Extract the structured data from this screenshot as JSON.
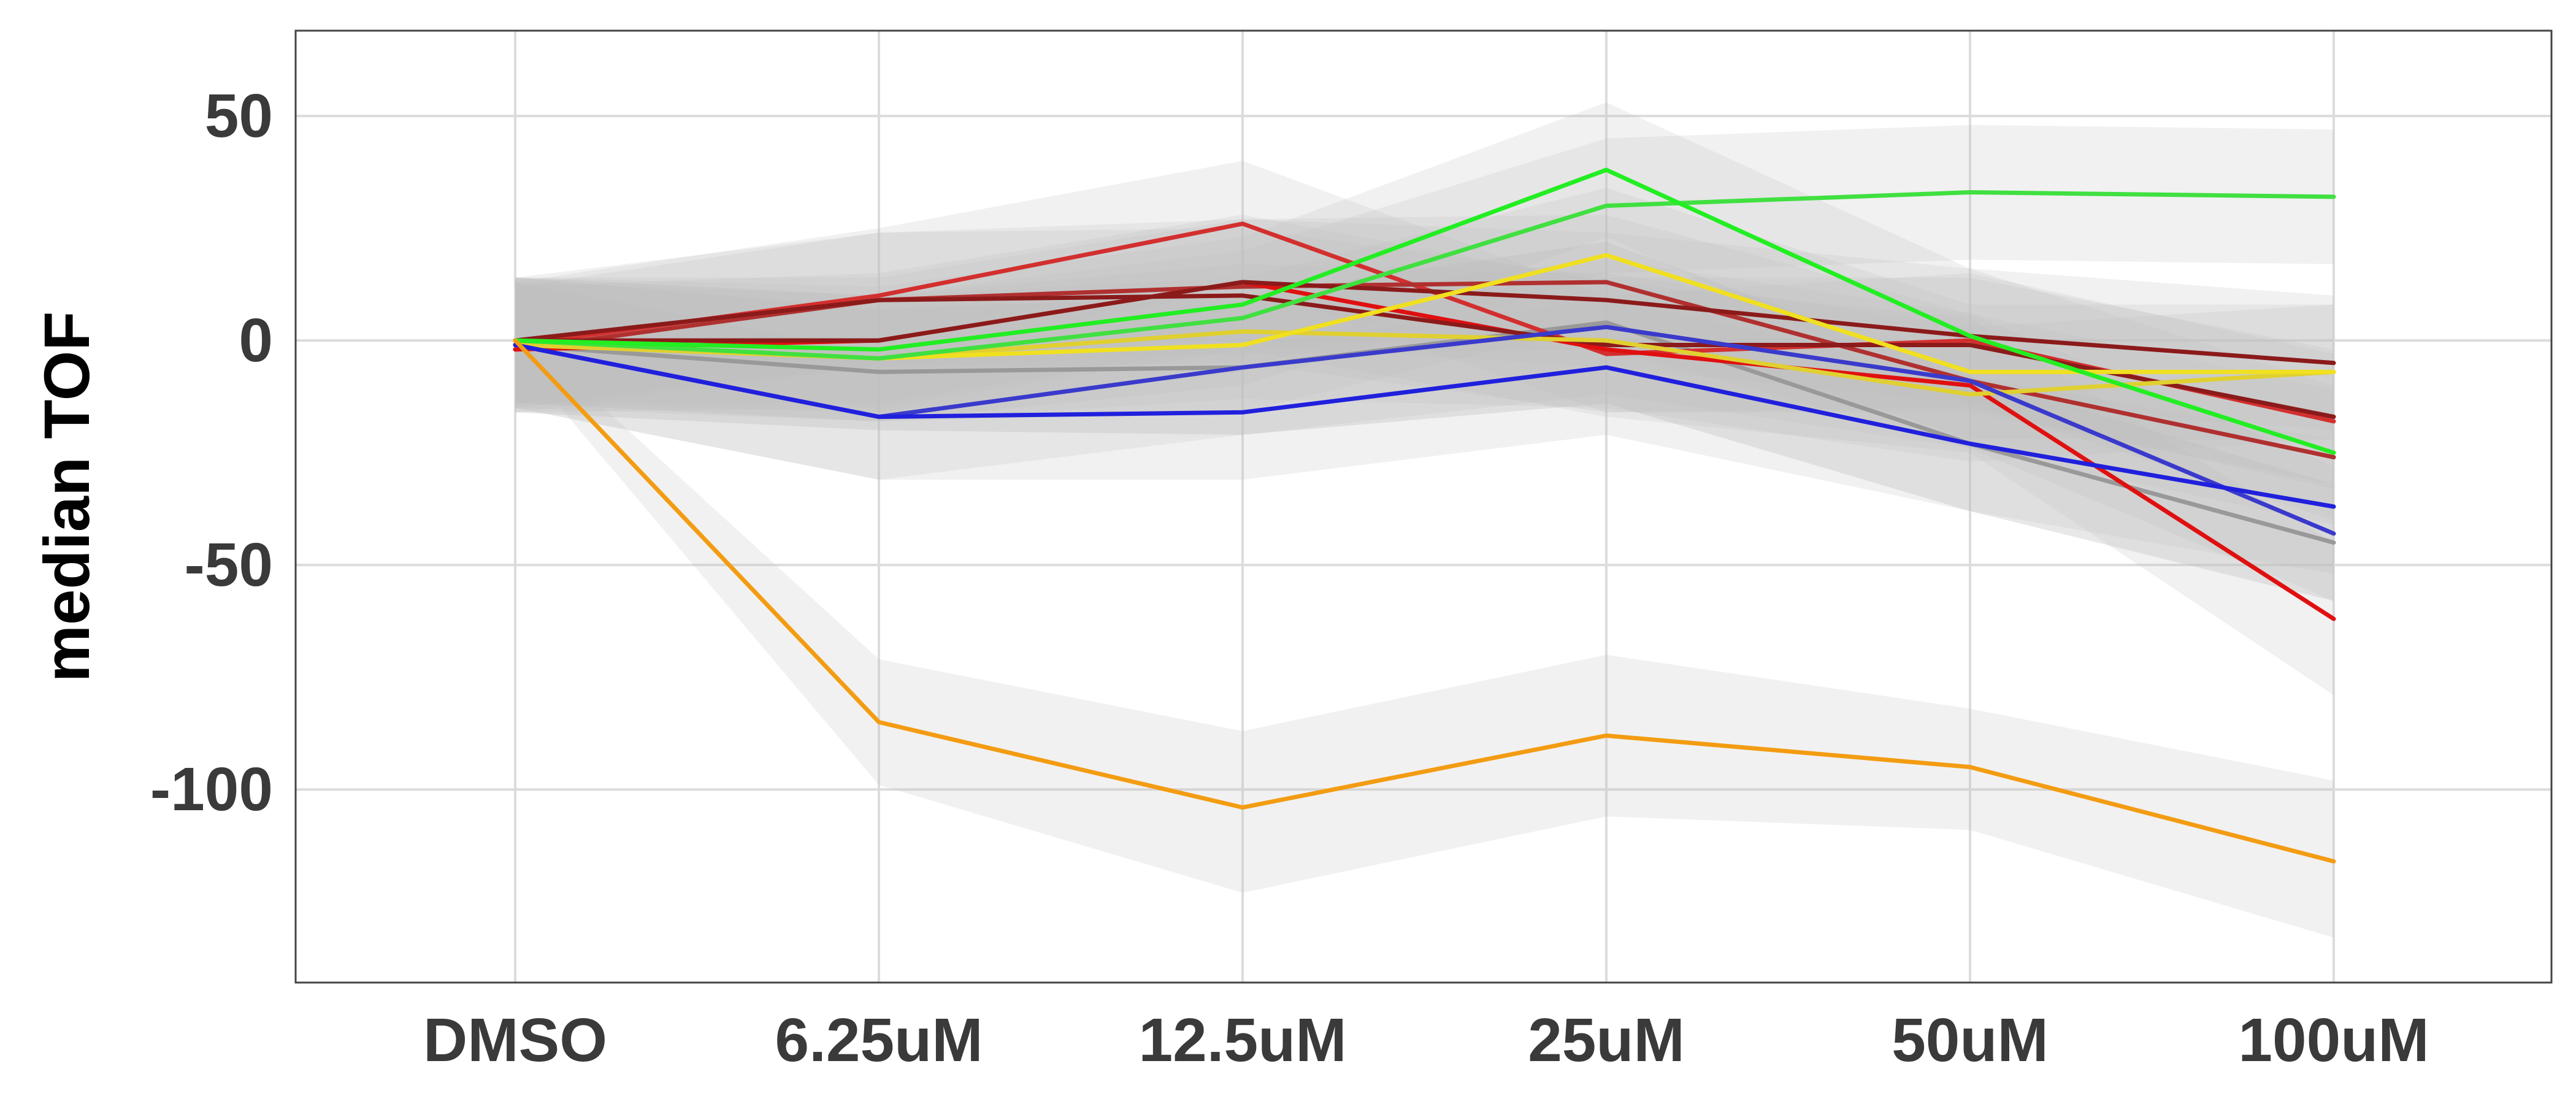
{
  "chart_data": {
    "type": "line",
    "title": "",
    "xlabel": "",
    "ylabel": "median TOF",
    "categories": [
      "DMSO",
      "6.25uM",
      "12.5uM",
      "25uM",
      "50uM",
      "100uM"
    ],
    "ylim": [
      -143,
      69
    ],
    "yticks": [
      50,
      0,
      -50,
      -100
    ],
    "ytick_labels": [
      "50",
      "0",
      "-50",
      "-100"
    ],
    "grid": true,
    "legend": "none",
    "ribbon_color": "#bdbdbd",
    "series": [
      {
        "color": "#999999",
        "values": [
          -1,
          -7,
          -6,
          4,
          -23,
          -45
        ],
        "lower": [
          -16,
          -20,
          -21,
          -14,
          -38,
          -58
        ],
        "upper": [
          14,
          7,
          10,
          22,
          -8,
          -32
        ],
        "ribbon_alpha": 0.35
      },
      {
        "color": "#d32f2f",
        "values": [
          -1,
          10,
          26,
          -3,
          0,
          -18
        ],
        "lower": [
          -15,
          -5,
          12,
          -16,
          -15,
          -33
        ],
        "upper": [
          13,
          25,
          40,
          10,
          15,
          -3
        ],
        "ribbon_alpha": 0.22
      },
      {
        "color": "#b03030",
        "values": [
          -2,
          9,
          12,
          13,
          -9,
          -26
        ],
        "lower": [
          -16,
          -6,
          -3,
          -2,
          -24,
          -41
        ],
        "upper": [
          12,
          24,
          27,
          28,
          6,
          -11
        ],
        "ribbon_alpha": 0.22
      },
      {
        "color": "#e01010",
        "values": [
          -2,
          0,
          13,
          -2,
          -10,
          -62
        ],
        "lower": [
          -16,
          -15,
          -2,
          -17,
          -25,
          -79
        ],
        "upper": [
          12,
          15,
          28,
          13,
          5,
          -45
        ],
        "ribbon_alpha": 0.22
      },
      {
        "color": "#8b1a1a",
        "values": [
          0,
          0,
          13,
          9,
          1,
          -5
        ],
        "lower": [
          -14,
          -14,
          -1,
          -6,
          -14,
          -20
        ],
        "upper": [
          14,
          14,
          27,
          24,
          16,
          10
        ],
        "ribbon_alpha": 0.22
      },
      {
        "color": "#8b1a1a",
        "values": [
          0,
          9,
          10,
          -1,
          -1,
          -17
        ],
        "lower": [
          -14,
          -6,
          -5,
          -16,
          -16,
          -32
        ],
        "upper": [
          14,
          24,
          25,
          14,
          14,
          -2
        ],
        "ribbon_alpha": 0.22
      },
      {
        "color": "#e0d030",
        "values": [
          -1,
          -4,
          2,
          0,
          -12,
          -7
        ],
        "lower": [
          -15,
          -18,
          -13,
          -15,
          -27,
          -22
        ],
        "upper": [
          13,
          10,
          17,
          15,
          3,
          8
        ],
        "ribbon_alpha": 0.22
      },
      {
        "color": "#f0e020",
        "values": [
          0,
          -4,
          -1,
          19,
          -7,
          -7
        ],
        "lower": [
          -14,
          -18,
          -16,
          4,
          -22,
          -22
        ],
        "upper": [
          14,
          10,
          14,
          34,
          8,
          8
        ],
        "ribbon_alpha": 0.22
      },
      {
        "color": "#3a3acc",
        "values": [
          -1,
          -17,
          -6,
          3,
          -9,
          -43
        ],
        "lower": [
          -15,
          -31,
          -21,
          -12,
          -24,
          -58
        ],
        "upper": [
          13,
          -3,
          9,
          18,
          6,
          -28
        ],
        "ribbon_alpha": 0.22
      },
      {
        "color": "#2020dd",
        "values": [
          -1,
          -17,
          -16,
          -6,
          -23,
          -37
        ],
        "lower": [
          -15,
          -31,
          -31,
          -21,
          -38,
          -52
        ],
        "upper": [
          13,
          -3,
          -1,
          9,
          -8,
          -22
        ],
        "ribbon_alpha": 0.22
      },
      {
        "color": "#40e040",
        "values": [
          0,
          -4,
          5,
          30,
          33,
          32
        ],
        "lower": [
          -14,
          -18,
          -10,
          15,
          18,
          17
        ],
        "upper": [
          14,
          10,
          20,
          45,
          48,
          47
        ],
        "ribbon_alpha": 0.22
      },
      {
        "color": "#22ee22",
        "values": [
          0,
          -2,
          8,
          38,
          1,
          -25
        ],
        "lower": [
          -14,
          -16,
          -7,
          23,
          -14,
          -40
        ],
        "upper": [
          14,
          12,
          23,
          53,
          16,
          -10
        ],
        "ribbon_alpha": 0.22
      },
      {
        "color": "#f39c12",
        "values": [
          0,
          -85,
          -104,
          -88,
          -95,
          -116
        ],
        "lower": [
          -3,
          -99,
          -123,
          -106,
          -109,
          -133
        ],
        "upper": [
          3,
          -71,
          -87,
          -70,
          -82,
          -98
        ],
        "ribbon_alpha": 0.22
      }
    ]
  }
}
